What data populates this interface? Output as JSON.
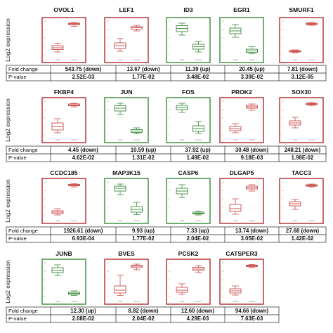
{
  "chart_data": {
    "type": "box",
    "ylabel": "Log2 expression",
    "categories": [
      "CAIS",
      "Control"
    ],
    "row_labels": [
      "Fold change",
      "P-value"
    ],
    "colors": {
      "down": "#b22a2a",
      "up": "#3a8a3a",
      "box": "#cc4b4b"
    },
    "groups": [
      {
        "genes": [
          {
            "name": "OVOL1",
            "direction": "down",
            "cais": [
              0.1,
              0.17,
              0.22,
              0.28,
              0.35
            ],
            "control": [
              0.83,
              0.88,
              0.9,
              0.92,
              0.94
            ],
            "fold_change": "543.75 (down)",
            "p_value": "2.52E-03"
          },
          {
            "name": "LEF1",
            "direction": "down",
            "cais": [
              0.12,
              0.2,
              0.28,
              0.36,
              0.48
            ],
            "control": [
              0.7,
              0.75,
              0.79,
              0.82,
              0.86
            ],
            "fold_change": "13.67 (down)",
            "p_value": "1.77E-02"
          },
          {
            "name": "ID3",
            "direction": "up",
            "cais": [
              0.58,
              0.68,
              0.77,
              0.85,
              0.92
            ],
            "control": [
              0.1,
              0.18,
              0.25,
              0.32,
              0.4
            ],
            "fold_change": "11.39 (up)",
            "p_value": "3.48E-02"
          },
          {
            "name": "EGR1",
            "direction": "up",
            "cais": [
              0.52,
              0.62,
              0.7,
              0.78,
              0.88
            ],
            "control": [
              0.05,
              0.09,
              0.13,
              0.18,
              0.25
            ],
            "fold_change": "20.45 (up)",
            "p_value": "3.39E-02"
          },
          {
            "name": "SMURF1",
            "direction": "down",
            "cais": [
              0.08,
              0.1,
              0.12,
              0.14,
              0.16
            ],
            "control": [
              0.86,
              0.88,
              0.9,
              0.92,
              0.94
            ],
            "fold_change": "7.81 (down)",
            "p_value": "3.12E-05"
          }
        ]
      },
      {
        "genes": [
          {
            "name": "FKBP4",
            "direction": "down",
            "cais": [
              0.08,
              0.16,
              0.25,
              0.36,
              0.48
            ],
            "control": [
              0.82,
              0.85,
              0.87,
              0.9,
              0.92
            ],
            "fold_change": "4.45 (down)",
            "p_value": "4.62E-02"
          },
          {
            "name": "JUN",
            "direction": "up",
            "cais": [
              0.6,
              0.7,
              0.78,
              0.85,
              0.92
            ],
            "control": [
              0.05,
              0.09,
              0.13,
              0.17,
              0.22
            ],
            "fold_change": "10.59 (up)",
            "p_value": "1.31E-02"
          },
          {
            "name": "FOS",
            "direction": "up",
            "cais": [
              0.66,
              0.74,
              0.8,
              0.86,
              0.92
            ],
            "control": [
              0.06,
              0.12,
              0.2,
              0.28,
              0.4
            ],
            "fold_change": "37.92 (up)",
            "p_value": "1.49E-02"
          },
          {
            "name": "PROK2",
            "direction": "down",
            "cais": [
              0.08,
              0.14,
              0.2,
              0.26,
              0.34
            ],
            "control": [
              0.72,
              0.78,
              0.82,
              0.86,
              0.9
            ],
            "fold_change": "30.48 (down)",
            "p_value": "9.18E-03"
          },
          {
            "name": "SOX30",
            "direction": "down",
            "cais": [
              0.22,
              0.3,
              0.36,
              0.42,
              0.52
            ],
            "control": [
              0.86,
              0.88,
              0.9,
              0.92,
              0.94
            ],
            "fold_change": "248.21 (down)",
            "p_value": "1.98E-02"
          }
        ]
      },
      {
        "genes": [
          {
            "name": "CCDC185",
            "direction": "down",
            "cais": [
              0.04,
              0.08,
              0.12,
              0.16,
              0.22
            ],
            "control": [
              0.84,
              0.87,
              0.89,
              0.91,
              0.93
            ],
            "fold_change": "1926.61 (down)",
            "p_value": "6.93E-04"
          },
          {
            "name": "MAP3K15",
            "direction": "up",
            "cais": [
              0.62,
              0.72,
              0.8,
              0.86,
              0.92
            ],
            "control": [
              0.05,
              0.12,
              0.2,
              0.28,
              0.4
            ],
            "fold_change": "9.93 (up)",
            "p_value": "1.77E-02"
          },
          {
            "name": "CASP6",
            "direction": "up",
            "cais": [
              0.54,
              0.64,
              0.72,
              0.8,
              0.9
            ],
            "control": [
              0.04,
              0.07,
              0.09,
              0.12,
              0.15
            ],
            "fold_change": "7.33 (up)",
            "p_value": "2.04E-02"
          },
          {
            "name": "DLGAP5",
            "direction": "down",
            "cais": [
              0.06,
              0.14,
              0.22,
              0.34,
              0.5
            ],
            "control": [
              0.72,
              0.78,
              0.82,
              0.86,
              0.9
            ],
            "fold_change": "13.74 (down)",
            "p_value": "3.05E-02"
          },
          {
            "name": "TACC3",
            "direction": "down",
            "cais": [
              0.2,
              0.3,
              0.36,
              0.42,
              0.48
            ],
            "control": [
              0.84,
              0.86,
              0.88,
              0.9,
              0.92
            ],
            "fold_change": "27.68 (down)",
            "p_value": "1.42E-02"
          }
        ]
      },
      {
        "genes": [
          {
            "name": "JUNB",
            "direction": "up",
            "cais": [
              0.62,
              0.7,
              0.76,
              0.84,
              0.92
            ],
            "control": [
              0.05,
              0.08,
              0.11,
              0.14,
              0.18
            ],
            "fold_change": "12.30 (up)",
            "p_value": "2.08E-02"
          },
          {
            "name": "BVES",
            "direction": "down",
            "cais": [
              0.05,
              0.12,
              0.2,
              0.32,
              0.62
            ],
            "control": [
              0.78,
              0.84,
              0.88,
              0.91,
              0.94
            ],
            "fold_change": "8.82 (down)",
            "p_value": "2.04E-02"
          },
          {
            "name": "PCSK2",
            "direction": "down",
            "cais": [
              0.08,
              0.14,
              0.2,
              0.28,
              0.38
            ],
            "control": [
              0.7,
              0.76,
              0.8,
              0.85,
              0.9
            ],
            "fold_change": "12.60 (down)",
            "p_value": "4.29E-03"
          },
          {
            "name": "CATSPER3",
            "direction": "down",
            "cais": [
              0.06,
              0.12,
              0.18,
              0.24,
              0.32
            ],
            "control": [
              0.84,
              0.87,
              0.89,
              0.91,
              0.93
            ],
            "fold_change": "94.66 (down)",
            "p_value": "7.63E-03"
          }
        ]
      }
    ]
  }
}
